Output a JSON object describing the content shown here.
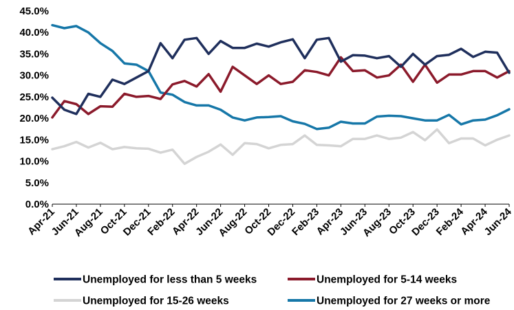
{
  "chart_data": {
    "type": "line",
    "title": "",
    "xlabel": "",
    "ylabel": "",
    "ylim": [
      0,
      45
    ],
    "y_ticks": [
      "0.0%",
      "5.0%",
      "10.0%",
      "15.0%",
      "20.0%",
      "25.0%",
      "30.0%",
      "35.0%",
      "40.0%",
      "45.0%"
    ],
    "x_tick_labels": [
      "Apr-21",
      "Jun-21",
      "Aug-21",
      "Oct-21",
      "Dec-21",
      "Feb-22",
      "Apr-22",
      "Jun-22",
      "Aug-22",
      "Oct-22",
      "Dec-22",
      "Feb-23",
      "Apr-23",
      "Jun-23",
      "Aug-23",
      "Oct-23",
      "Dec-23",
      "Feb-24",
      "Apr-24",
      "Jun-24"
    ],
    "x": [
      "Apr-21",
      "May-21",
      "Jun-21",
      "Jul-21",
      "Aug-21",
      "Sep-21",
      "Oct-21",
      "Nov-21",
      "Dec-21",
      "Jan-22",
      "Feb-22",
      "Mar-22",
      "Apr-22",
      "May-22",
      "Jun-22",
      "Jul-22",
      "Aug-22",
      "Sep-22",
      "Oct-22",
      "Nov-22",
      "Dec-22",
      "Jan-23",
      "Feb-23",
      "Mar-23",
      "Apr-23",
      "May-23",
      "Jun-23",
      "Jul-23",
      "Aug-23",
      "Sep-23",
      "Oct-23",
      "Nov-23",
      "Dec-23",
      "Jan-24",
      "Feb-24",
      "Mar-24",
      "Apr-24",
      "May-24",
      "Jun-24"
    ],
    "grid": false,
    "legend_placement": "bottom",
    "series": [
      {
        "name": "Unemployed for less than 5 weeks",
        "color": "#1f2f5c",
        "values": [
          24.8,
          22.0,
          21.0,
          25.7,
          25.0,
          29.0,
          28.0,
          29.5,
          31.0,
          37.5,
          34.0,
          38.3,
          38.7,
          35.0,
          38.0,
          36.4,
          36.4,
          37.4,
          36.7,
          37.7,
          38.4,
          34.0,
          38.3,
          38.7,
          33.2,
          34.7,
          34.6,
          34.0,
          34.5,
          32.0,
          35.0,
          32.5,
          34.5,
          34.8,
          36.2,
          34.3,
          35.5,
          35.3,
          30.6
        ]
      },
      {
        "name": "Unemployed for 5-14 weeks",
        "color": "#8b1a2b",
        "values": [
          20.2,
          24.0,
          23.3,
          21.0,
          22.8,
          22.7,
          25.7,
          25.0,
          25.2,
          24.5,
          27.9,
          28.7,
          27.4,
          30.3,
          26.2,
          32.0,
          30.0,
          28.0,
          30.0,
          28.0,
          28.5,
          31.2,
          30.8,
          30.0,
          34.2,
          31.0,
          31.2,
          29.5,
          30.0,
          32.5,
          28.5,
          32.5,
          28.3,
          30.2,
          30.2,
          31.0,
          31.0,
          29.5,
          31.0
        ]
      },
      {
        "name": "Unemployed for 15-26 weeks",
        "color": "#d4d4d4",
        "values": [
          12.8,
          13.5,
          14.5,
          13.2,
          14.3,
          12.8,
          13.3,
          13.0,
          12.9,
          12.0,
          12.7,
          9.4,
          11.0,
          12.2,
          13.9,
          11.5,
          14.2,
          14.0,
          13.0,
          13.8,
          14.0,
          16.0,
          13.8,
          13.7,
          13.5,
          15.2,
          15.2,
          16.0,
          15.2,
          15.5,
          16.8,
          14.9,
          17.4,
          14.2,
          15.3,
          15.3,
          13.7,
          15.0,
          16.0
        ]
      },
      {
        "name": "Unemployed for 27 weeks or more",
        "color": "#1677a8",
        "values": [
          41.7,
          41.0,
          41.5,
          40.0,
          37.5,
          35.7,
          32.8,
          32.5,
          31.0,
          26.0,
          25.5,
          23.8,
          23.0,
          23.0,
          22.0,
          20.2,
          19.5,
          20.2,
          20.3,
          20.5,
          19.3,
          18.7,
          17.5,
          17.8,
          19.2,
          18.8,
          18.8,
          20.4,
          20.6,
          20.5,
          20.0,
          19.5,
          19.5,
          20.8,
          18.6,
          19.5,
          19.7,
          20.7,
          22.1
        ]
      }
    ]
  }
}
